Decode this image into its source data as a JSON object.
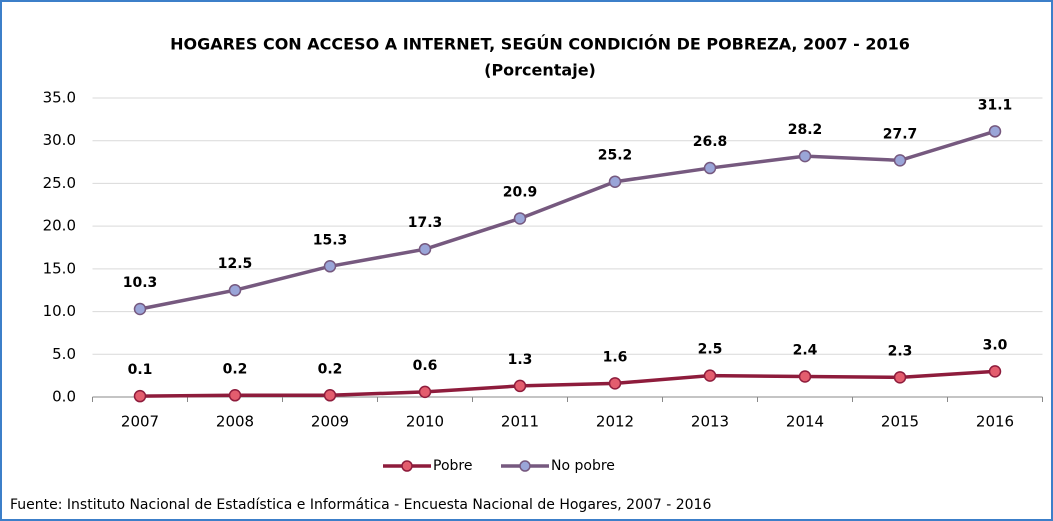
{
  "chart_data": {
    "type": "line",
    "title": "HOGARES CON ACCESO A INTERNET, SEGÚN CONDICIÓN DE POBREZA, 2007 - 2016",
    "subtitle": "(Porcentaje)",
    "categories": [
      "2007",
      "2008",
      "2009",
      "2010",
      "2011",
      "2012",
      "2013",
      "2014",
      "2015",
      "2016"
    ],
    "series": [
      {
        "name": "Pobre",
        "color": "#8e1c3c",
        "marker_color": "#e35d6e",
        "values": [
          0.1,
          0.2,
          0.2,
          0.6,
          1.3,
          1.6,
          2.5,
          2.4,
          2.3,
          3.0
        ],
        "value_labels": [
          "0.1",
          "0.2",
          "0.2",
          "0.6",
          "1.3",
          "1.6",
          "2.5",
          "2.4",
          "2.3",
          "3.0"
        ]
      },
      {
        "name": "No pobre",
        "color": "#76597f",
        "marker_color": "#9aa5d8",
        "values": [
          10.3,
          12.5,
          15.3,
          17.3,
          20.9,
          25.2,
          26.8,
          28.2,
          27.7,
          31.1
        ],
        "value_labels": [
          "10.3",
          "12.5",
          "15.3",
          "17.3",
          "20.9",
          "25.2",
          "26.8",
          "28.2",
          "27.7",
          "31.1"
        ]
      }
    ],
    "ylim": [
      0,
      35
    ],
    "yticks": [
      {
        "value": 0,
        "label": "0.0"
      },
      {
        "value": 5,
        "label": "5.0"
      },
      {
        "value": 10,
        "label": "10.0"
      },
      {
        "value": 15,
        "label": "15.0"
      },
      {
        "value": 20,
        "label": "20.0"
      },
      {
        "value": 25,
        "label": "25.0"
      },
      {
        "value": 30,
        "label": "30.0"
      },
      {
        "value": 35,
        "label": "35.0"
      }
    ],
    "grid": true,
    "legend": "bottom",
    "source": "Fuente: Instituto Nacional de Estadística e Informática - Encuesta Nacional de Hogares, 2007 - 2016"
  }
}
